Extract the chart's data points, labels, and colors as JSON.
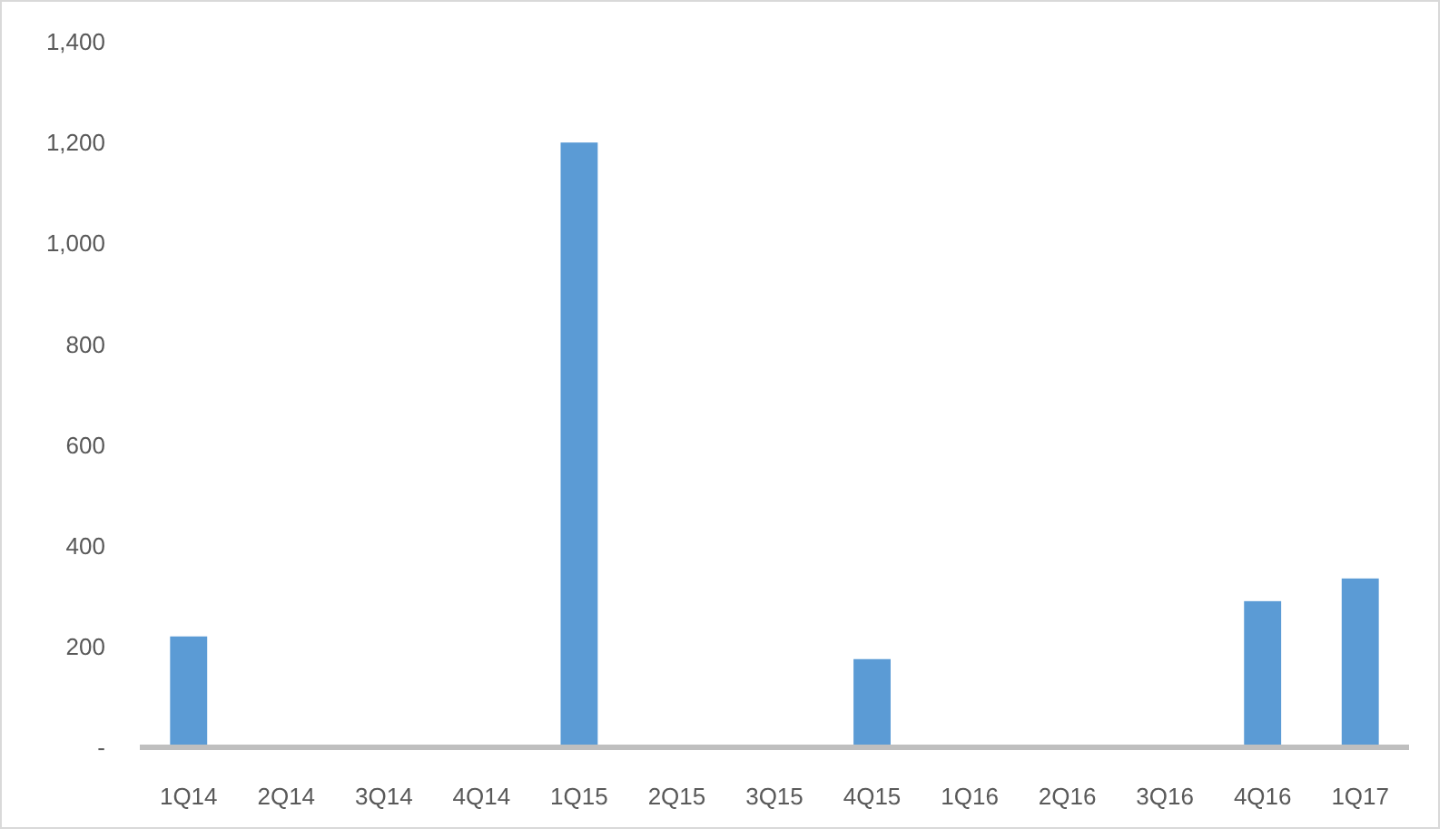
{
  "chart_data": {
    "type": "bar",
    "categories": [
      "1Q14",
      "2Q14",
      "3Q14",
      "4Q14",
      "1Q15",
      "2Q15",
      "3Q15",
      "4Q15",
      "1Q16",
      "2Q16",
      "3Q16",
      "4Q16",
      "1Q17"
    ],
    "values": [
      220,
      0,
      0,
      0,
      1200,
      0,
      0,
      175,
      0,
      0,
      0,
      290,
      335
    ],
    "color": "#5b9bd5",
    "ylim": [
      0,
      1400
    ],
    "yticks": [
      {
        "value": 0,
        "label": "-"
      },
      {
        "value": 200,
        "label": "200"
      },
      {
        "value": 400,
        "label": "400"
      },
      {
        "value": 600,
        "label": "600"
      },
      {
        "value": 800,
        "label": "800"
      },
      {
        "value": 1000,
        "label": "1,000"
      },
      {
        "value": 1200,
        "label": "1,200"
      },
      {
        "value": 1400,
        "label": "1,400"
      }
    ],
    "grid": false
  }
}
